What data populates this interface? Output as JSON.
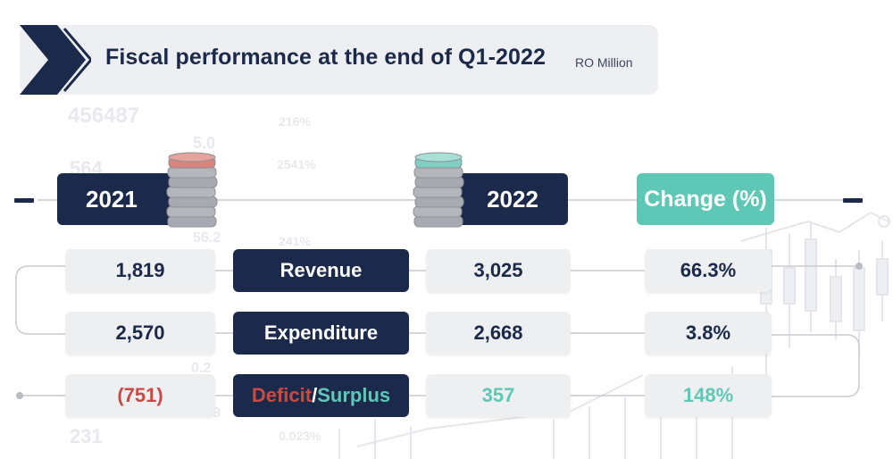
{
  "title": "Fiscal performance at the end of Q1-2022",
  "unit": "RO Million",
  "headers": {
    "y2021": "2021",
    "y2022": "2022",
    "change": "Change (%)"
  },
  "labels": {
    "revenue": "Revenue",
    "expenditure": "Expenditure",
    "deficit": "Deficit",
    "slash": "/",
    "surplus": "Surplus"
  },
  "values": {
    "revenue_2021": "1,819",
    "revenue_2022": "3,025",
    "revenue_change": "66.3%",
    "expenditure_2021": "2,570",
    "expenditure_2022": "2,668",
    "expenditure_change": "3.8%",
    "balance_2021": "(751)",
    "balance_2022": "357",
    "balance_change": "148%"
  },
  "colors": {
    "navy": "#1b2a4a",
    "teal": "#5fc7b5",
    "red": "#c94a42",
    "light_gray": "#eeeff1"
  },
  "icons": [
    "chevron-right-icon",
    "coin-stack-icon"
  ],
  "chart_data": {
    "type": "table",
    "title": "Fiscal performance at the end of Q1-2022",
    "unit": "RO Million",
    "columns": [
      "2021",
      "2022",
      "Change (%)"
    ],
    "rows": [
      {
        "label": "Revenue",
        "2021": 1819,
        "2022": 3025,
        "change_pct": 66.3
      },
      {
        "label": "Expenditure",
        "2021": 2570,
        "2022": 2668,
        "change_pct": 3.8
      },
      {
        "label": "Deficit/Surplus",
        "2021": -751,
        "2022": 357,
        "change_pct": 148
      }
    ]
  }
}
